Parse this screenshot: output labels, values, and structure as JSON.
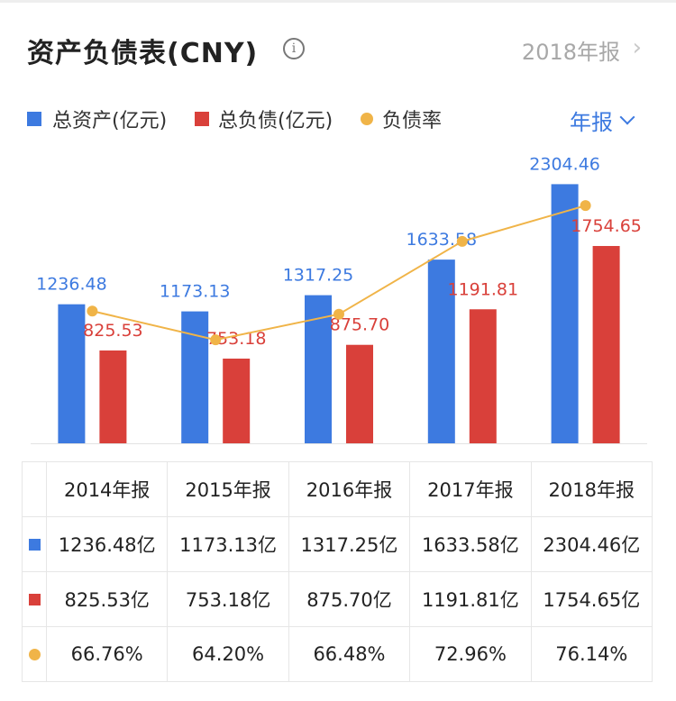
{
  "header": {
    "title": "资产负债表(CNY)",
    "info_icon": "info-icon",
    "period": "2018年报",
    "period_icon": "chevron-right-icon"
  },
  "legend": {
    "items": [
      {
        "label": "总资产(亿元)",
        "color": "#3d7ae0",
        "shape": "square"
      },
      {
        "label": "总负债(亿元)",
        "color": "#d9403a",
        "shape": "square"
      },
      {
        "label": "负债率",
        "color": "#f0b448",
        "shape": "dot"
      }
    ]
  },
  "frequency": {
    "label": "年报",
    "icon": "chevron-down-icon"
  },
  "chart_data": {
    "type": "bar",
    "categories": [
      "2014年报",
      "2015年报",
      "2016年报",
      "2017年报",
      "2018年报"
    ],
    "series": [
      {
        "name": "总资产(亿元)",
        "type": "bar",
        "color": "#3d7ae0",
        "values": [
          1236.48,
          1173.13,
          1317.25,
          1633.58,
          2304.46
        ],
        "labels": [
          "1236.48",
          "1173.13",
          "1317.25",
          "1633.58",
          "2304.46"
        ]
      },
      {
        "name": "总负债(亿元)",
        "type": "bar",
        "color": "#d9403a",
        "values": [
          825.53,
          753.18,
          875.7,
          1191.81,
          1754.65
        ],
        "labels": [
          "825.53",
          "753.18",
          "875.70",
          "1191.81",
          "1754.65"
        ]
      },
      {
        "name": "负债率",
        "type": "line",
        "color": "#f0b448",
        "values": [
          66.76,
          64.2,
          66.48,
          72.96,
          76.14
        ]
      }
    ],
    "bar_ylim": [
      0,
      2500
    ],
    "line_ylim": [
      55,
      80
    ]
  },
  "table": {
    "header": [
      "2014年报",
      "2015年报",
      "2016年报",
      "2017年报",
      "2018年报"
    ],
    "rows": [
      {
        "marker": "square",
        "color": "#3d7ae0",
        "cells": [
          "1236.48亿",
          "1173.13亿",
          "1317.25亿",
          "1633.58亿",
          "2304.46亿"
        ]
      },
      {
        "marker": "square",
        "color": "#d9403a",
        "cells": [
          "825.53亿",
          "753.18亿",
          "875.70亿",
          "1191.81亿",
          "1754.65亿"
        ]
      },
      {
        "marker": "dot",
        "color": "#f0b448",
        "cells": [
          "66.76%",
          "64.20%",
          "66.48%",
          "72.96%",
          "76.14%"
        ]
      }
    ]
  }
}
